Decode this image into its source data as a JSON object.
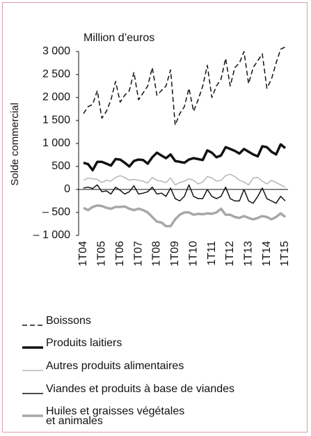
{
  "chart_data": {
    "type": "line",
    "title": "Million d’euros",
    "y_label": "Solde commercial",
    "categories": [
      "1T04",
      null,
      null,
      null,
      "1T05",
      null,
      null,
      null,
      "1T06",
      null,
      null,
      null,
      "1T07",
      null,
      null,
      null,
      "1T08",
      null,
      null,
      null,
      "1T09",
      null,
      null,
      null,
      "1T10",
      null,
      null,
      null,
      "1T11",
      null,
      null,
      null,
      "1T12",
      null,
      null,
      null,
      "1T13",
      null,
      null,
      null,
      "1T14",
      null,
      null,
      null,
      "1T15"
    ],
    "ylim": [
      -1000,
      3000
    ],
    "yticks": [
      {
        "value": 3000,
        "label": "3 000"
      },
      {
        "value": 2500,
        "label": "2 500"
      },
      {
        "value": 2000,
        "label": "2 000"
      },
      {
        "value": 1500,
        "label": "1 500"
      },
      {
        "value": 1000,
        "label": "1 000"
      },
      500,
      0,
      {
        "value": -500,
        "label": "– 500"
      },
      {
        "value": -1000,
        "label": "– 1 000"
      }
    ],
    "series": [
      {
        "name": "Boissons",
        "color": "#111111",
        "style": "dashed",
        "width": 1.5,
        "values": [
          1650,
          1800,
          1850,
          2150,
          1550,
          1700,
          1950,
          2350,
          1900,
          2050,
          2150,
          2550,
          1950,
          2100,
          2250,
          2650,
          2050,
          2150,
          2250,
          2600,
          1400,
          1650,
          1800,
          2200,
          1700,
          1950,
          2250,
          2700,
          2000,
          2250,
          2400,
          2850,
          2250,
          2650,
          2750,
          3000,
          2300,
          2650,
          2800,
          2950,
          2200,
          2400,
          2750,
          3050,
          3100
        ]
      },
      {
        "name": "Produits laitiers",
        "color": "#111111",
        "style": "solid",
        "width": 3.5,
        "values": [
          580,
          550,
          420,
          600,
          600,
          560,
          520,
          660,
          650,
          580,
          500,
          620,
          650,
          640,
          560,
          700,
          800,
          740,
          680,
          760,
          620,
          600,
          580,
          650,
          680,
          660,
          640,
          850,
          800,
          700,
          740,
          920,
          880,
          840,
          780,
          880,
          820,
          760,
          720,
          940,
          920,
          820,
          760,
          980,
          900
        ]
      },
      {
        "name": "Autres produits alimentaires",
        "color": "#b5b5b5",
        "style": "solid",
        "width": 1.5,
        "values": [
          200,
          250,
          230,
          220,
          150,
          200,
          180,
          260,
          300,
          260,
          200,
          220,
          200,
          180,
          140,
          260,
          200,
          180,
          150,
          250,
          100,
          150,
          180,
          230,
          200,
          120,
          160,
          280,
          250,
          180,
          200,
          300,
          330,
          280,
          200,
          160,
          100,
          250,
          260,
          180,
          120,
          200,
          150,
          100,
          50
        ]
      },
      {
        "name": "Viandes et produits à base de viandes",
        "color": "#111111",
        "style": "solid",
        "width": 1.5,
        "values": [
          30,
          50,
          20,
          100,
          -50,
          -30,
          -100,
          50,
          -20,
          -100,
          -50,
          80,
          -100,
          -80,
          -50,
          50,
          -100,
          -80,
          -150,
          30,
          -200,
          -250,
          -150,
          100,
          -150,
          -200,
          -200,
          0,
          -150,
          -200,
          -150,
          50,
          -200,
          -250,
          -250,
          0,
          -250,
          -300,
          -150,
          30,
          -200,
          -250,
          -300,
          -150,
          -250
        ]
      },
      {
        "name": "Huiles et graisses végétales\net animales",
        "color": "#a8a8a8",
        "style": "solid",
        "width": 3.5,
        "values": [
          -400,
          -450,
          -380,
          -350,
          -360,
          -400,
          -420,
          -380,
          -380,
          -370,
          -420,
          -450,
          -420,
          -450,
          -500,
          -600,
          -700,
          -720,
          -800,
          -800,
          -650,
          -550,
          -500,
          -500,
          -550,
          -530,
          -540,
          -520,
          -530,
          -500,
          -420,
          -550,
          -550,
          -600,
          -620,
          -580,
          -620,
          -650,
          -620,
          -580,
          -600,
          -650,
          -600,
          -520,
          -600
        ]
      }
    ]
  }
}
